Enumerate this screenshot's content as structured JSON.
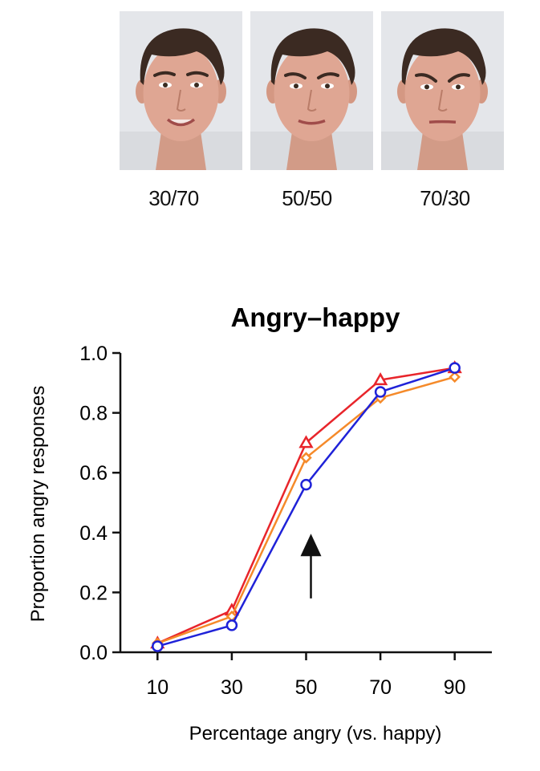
{
  "faces": [
    {
      "caption": "30/70",
      "icon": "face-photo-icon"
    },
    {
      "caption": "50/50",
      "icon": "face-photo-icon"
    },
    {
      "caption": "70/30",
      "icon": "face-photo-icon"
    }
  ],
  "chart_data": {
    "type": "line",
    "title": "Angry–happy",
    "xlabel": "Percentage angry (vs. happy)",
    "ylabel": "Proportion angry responses",
    "x": [
      10,
      30,
      50,
      70,
      90
    ],
    "x_tick_labels": [
      "10",
      "30",
      "50",
      "70",
      "90"
    ],
    "xlim": [
      0,
      100
    ],
    "ylim": [
      0,
      1.0
    ],
    "y_tick_labels": [
      "0.0",
      "0.2",
      "0.4",
      "0.6",
      "0.8",
      "1.0"
    ],
    "y_ticks": [
      0,
      0.2,
      0.4,
      0.6,
      0.8,
      1.0
    ],
    "grid": false,
    "series": [
      {
        "values": [
          0.03,
          0.14,
          0.7,
          0.91,
          0.95
        ],
        "color": "#e8252b",
        "marker": "triangle"
      },
      {
        "values": [
          0.03,
          0.12,
          0.65,
          0.85,
          0.92
        ],
        "color": "#f58a2a",
        "marker": "diamond"
      },
      {
        "values": [
          0.02,
          0.09,
          0.56,
          0.87,
          0.95
        ],
        "color": "#1f22d8",
        "marker": "circle"
      }
    ],
    "annotations": [
      {
        "type": "arrow",
        "x": 50,
        "y_from": 0.18,
        "y_to": 0.38,
        "direction": "up"
      }
    ]
  }
}
